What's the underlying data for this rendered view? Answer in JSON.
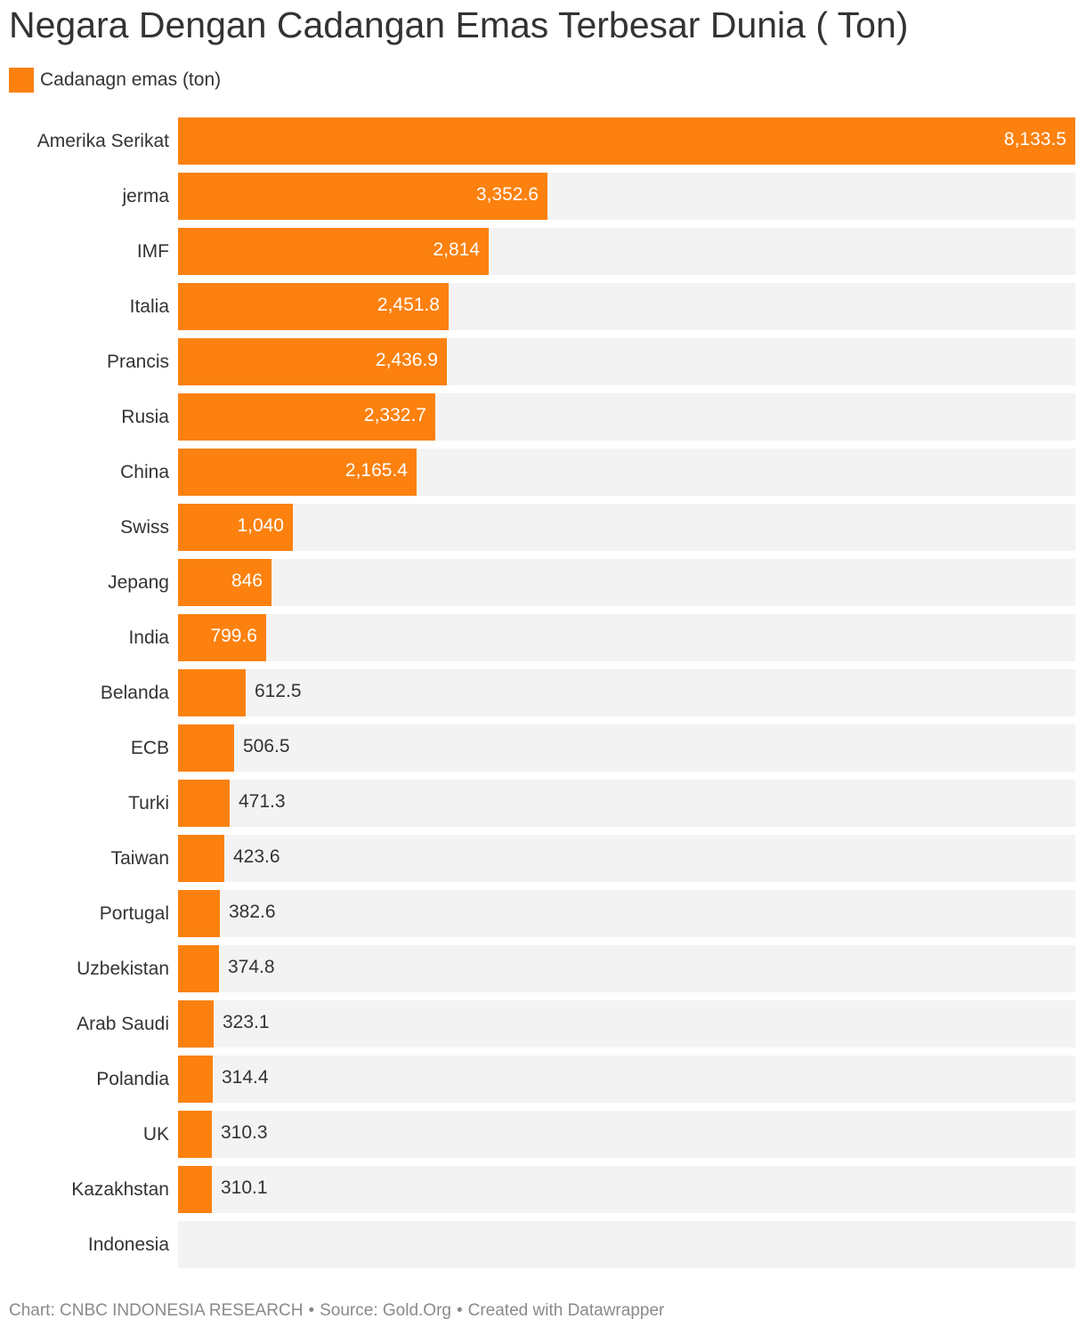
{
  "title": "Negara Dengan Cadangan Emas Terbesar Dunia ( Ton)",
  "legend": {
    "label": "Cadanagn emas (ton)"
  },
  "colors": {
    "bar": "#fc810f",
    "track": "#f3f3f3",
    "label_inside": "#ffffff",
    "label_outside": "#333333"
  },
  "chart_data": {
    "type": "bar",
    "orientation": "horizontal",
    "title": "Negara Dengan Cadangan Emas Terbesar Dunia ( Ton)",
    "series": [
      {
        "name": "Cadanagn emas (ton)",
        "values": [
          8133.5,
          3352.6,
          2814,
          2451.8,
          2436.9,
          2332.7,
          2165.4,
          1040,
          846,
          799.6,
          612.5,
          506.5,
          471.3,
          423.6,
          382.6,
          374.8,
          323.1,
          314.4,
          310.3,
          310.1,
          null
        ]
      }
    ],
    "categories": [
      "Amerika Serikat",
      "jerma",
      "IMF",
      "Italia",
      "Prancis",
      "Rusia",
      "China",
      "Swiss",
      "Jepang",
      "India",
      "Belanda",
      "ECB",
      "Turki",
      "Taiwan",
      "Portugal",
      "Uzbekistan",
      "Arab Saudi",
      "Polandia",
      "UK",
      "Kazakhstan",
      "Indonesia"
    ],
    "value_labels": [
      "8,133.5",
      "3,352.6",
      "2,814",
      "2,451.8",
      "2,436.9",
      "2,332.7",
      "2,165.4",
      "1,040",
      "846",
      "799.6",
      "612.5",
      "506.5",
      "471.3",
      "423.6",
      "382.6",
      "374.8",
      "323.1",
      "314.4",
      "310.3",
      "310.1",
      ""
    ],
    "xlim": [
      0,
      8133.5
    ],
    "grid": false,
    "legend_position": "top-left"
  },
  "footer": {
    "chart_credit": "Chart: CNBC INDONESIA RESEARCH",
    "source": "Source: Gold.Org",
    "tool": "Created with Datawrapper",
    "separator": "•"
  }
}
